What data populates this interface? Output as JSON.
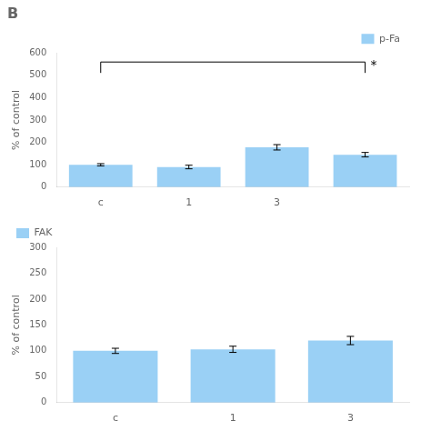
{
  "chart_data": [
    {
      "type": "bar",
      "title": "B",
      "categories": [
        "c",
        "1",
        "3",
        null
      ],
      "series": [
        {
          "name": "p-Fa",
          "values": [
            100,
            90,
            178,
            145
          ],
          "errors": [
            5,
            8,
            12,
            10
          ]
        }
      ],
      "ylabel": "% of control",
      "ylim": [
        0,
        600
      ],
      "yticks": [
        0,
        100,
        200,
        300,
        400,
        500,
        600
      ],
      "grid": false,
      "legend": "upper right",
      "annotations": [
        "*"
      ]
    },
    {
      "type": "bar",
      "categories": [
        "c",
        "1",
        "3"
      ],
      "series": [
        {
          "name": "FAK",
          "values": [
            100,
            103,
            120
          ],
          "errors": [
            5,
            6,
            8
          ]
        }
      ],
      "ylabel": "% of control",
      "ylim": [
        0,
        300
      ],
      "yticks": [
        0,
        50,
        100,
        150,
        200,
        250,
        300
      ],
      "grid": false,
      "legend": "upper left"
    }
  ]
}
